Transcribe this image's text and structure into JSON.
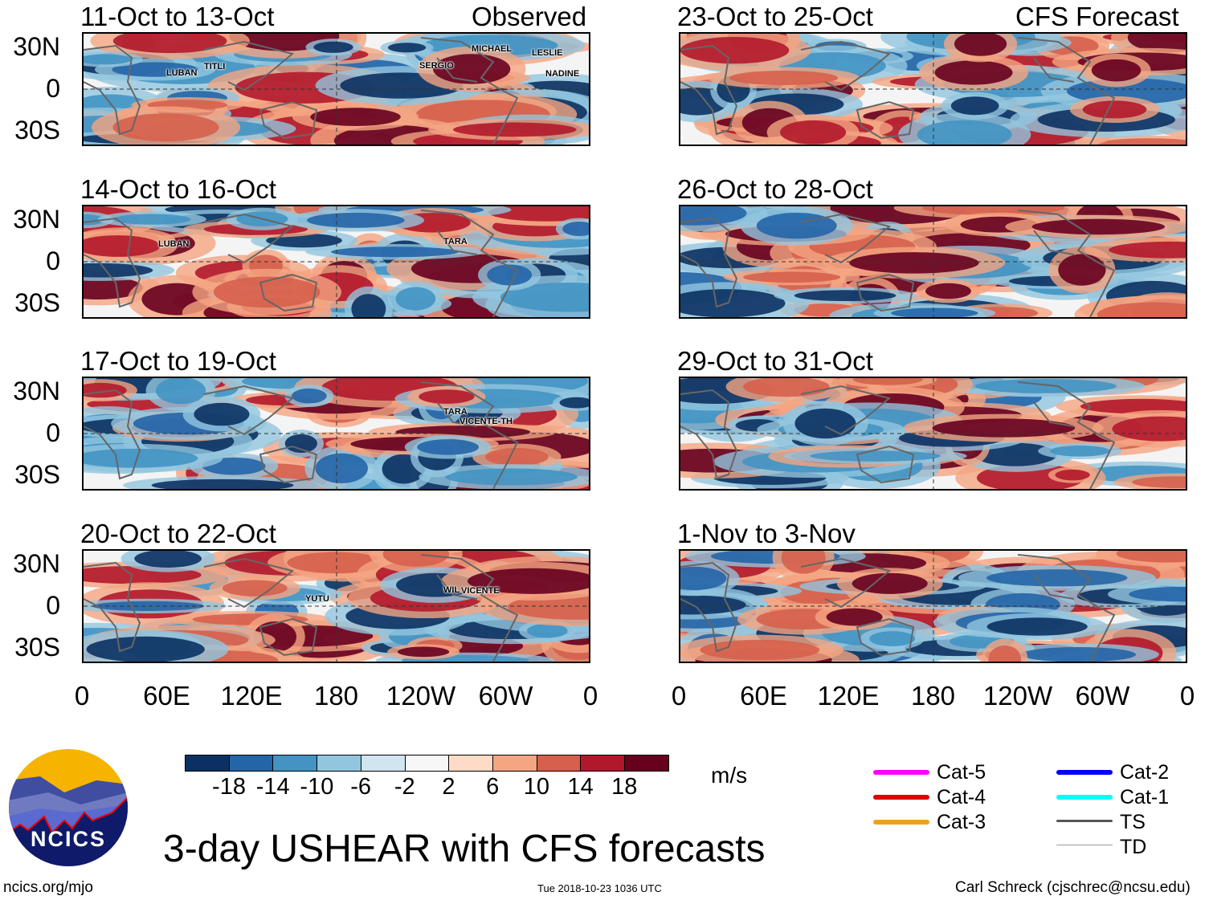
{
  "header": {
    "left_label": "Observed",
    "right_label": "CFS Forecast"
  },
  "panels_left": [
    {
      "title": "11-Oct to 13-Oct",
      "storms": [
        "LUBAN",
        "TITLI",
        "SERGIO",
        "MICHAEL",
        "LESLIE",
        "NADINE"
      ]
    },
    {
      "title": "14-Oct to 16-Oct",
      "storms": [
        "LUBAN",
        "TARA"
      ]
    },
    {
      "title": "17-Oct to 19-Oct",
      "storms": [
        "TARA",
        "VICENTE-TH"
      ]
    },
    {
      "title": "20-Oct to 22-Oct",
      "storms": [
        "YUTU",
        "WIL",
        "VICENTE"
      ]
    }
  ],
  "panels_right": [
    {
      "title": "23-Oct to 25-Oct"
    },
    {
      "title": "26-Oct to 28-Oct"
    },
    {
      "title": "29-Oct to 31-Oct"
    },
    {
      "title": "1-Nov to 3-Nov"
    }
  ],
  "lat_labels": [
    "30N",
    "0",
    "30S"
  ],
  "lon_labels": [
    "0",
    "60E",
    "120E",
    "180",
    "120W",
    "60W",
    "0"
  ],
  "colorbar": {
    "colors": [
      "#0b3162",
      "#2465a8",
      "#4393c3",
      "#92c5de",
      "#d1e5f0",
      "#f7f7f7",
      "#fddbc7",
      "#f4a582",
      "#d6604d",
      "#b2182b",
      "#67001f"
    ],
    "labels": [
      "-18",
      "-14",
      "-10",
      "-6",
      "-2",
      "2",
      "6",
      "10",
      "14",
      "18"
    ],
    "units": "m/s"
  },
  "legend": [
    {
      "label": "Cat-5",
      "color": "#ff00ff"
    },
    {
      "label": "Cat-4",
      "color": "#e00000"
    },
    {
      "label": "Cat-3",
      "color": "#f0a020"
    },
    {
      "label": "Cat-2",
      "color": "#0000ff"
    },
    {
      "label": "Cat-1",
      "color": "#00ffff"
    },
    {
      "label": "TS",
      "color": "#555555"
    },
    {
      "label": "TD",
      "color": "#999999"
    }
  ],
  "title": "3-day USHEAR with CFS forecasts",
  "logo": {
    "text": "NCICS"
  },
  "footer": {
    "url": "ncics.org/mjo",
    "timestamp": "Tue 2018-10-23 1036 UTC",
    "credit": "Carl Schreck (cjschrec@ncsu.edu)"
  }
}
